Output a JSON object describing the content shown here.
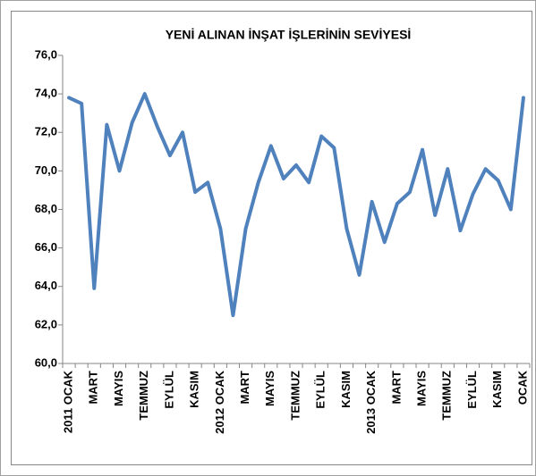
{
  "chart_data": {
    "type": "line",
    "title": "YENİ ALINAN İNŞAT İŞLERİNİN SEVİYESİ",
    "categories": [
      "2011 OCAK",
      null,
      "MART",
      null,
      "MAYIS",
      null,
      "TEMMUZ",
      null,
      "EYLÜL",
      null,
      "KASIM",
      null,
      "2012 OCAK",
      null,
      "MART",
      null,
      "MAYIS",
      null,
      "TEMMUZ",
      null,
      "EYLÜL",
      null,
      "KASIM",
      null,
      "2013 OCAK",
      null,
      "MART",
      null,
      "MAYIS",
      null,
      "TEMMUZ",
      null,
      "EYLÜL",
      null,
      "KASIM",
      null,
      "OCAK"
    ],
    "values": [
      73.8,
      73.5,
      63.9,
      72.4,
      70.0,
      72.5,
      74.0,
      72.3,
      70.8,
      72.0,
      68.9,
      69.4,
      67.0,
      62.5,
      67.0,
      69.4,
      71.3,
      69.6,
      70.3,
      69.4,
      71.8,
      71.2,
      67.0,
      64.6,
      68.4,
      66.3,
      68.3,
      68.9,
      71.1,
      67.7,
      70.1,
      66.9,
      68.8,
      70.1,
      69.5,
      68.0,
      73.8
    ],
    "color": "#4f81bd",
    "ylim": [
      60,
      76
    ],
    "yticks": [
      {
        "value": 60,
        "label": "60,0"
      },
      {
        "value": 62,
        "label": "62,0"
      },
      {
        "value": 64,
        "label": "64,0"
      },
      {
        "value": 66,
        "label": "66,0"
      },
      {
        "value": 68,
        "label": "68,0"
      },
      {
        "value": 70,
        "label": "70,0"
      },
      {
        "value": 72,
        "label": "72,0"
      },
      {
        "value": 74,
        "label": "74,0"
      },
      {
        "value": 76,
        "label": "76,0"
      }
    ],
    "grid": false
  }
}
